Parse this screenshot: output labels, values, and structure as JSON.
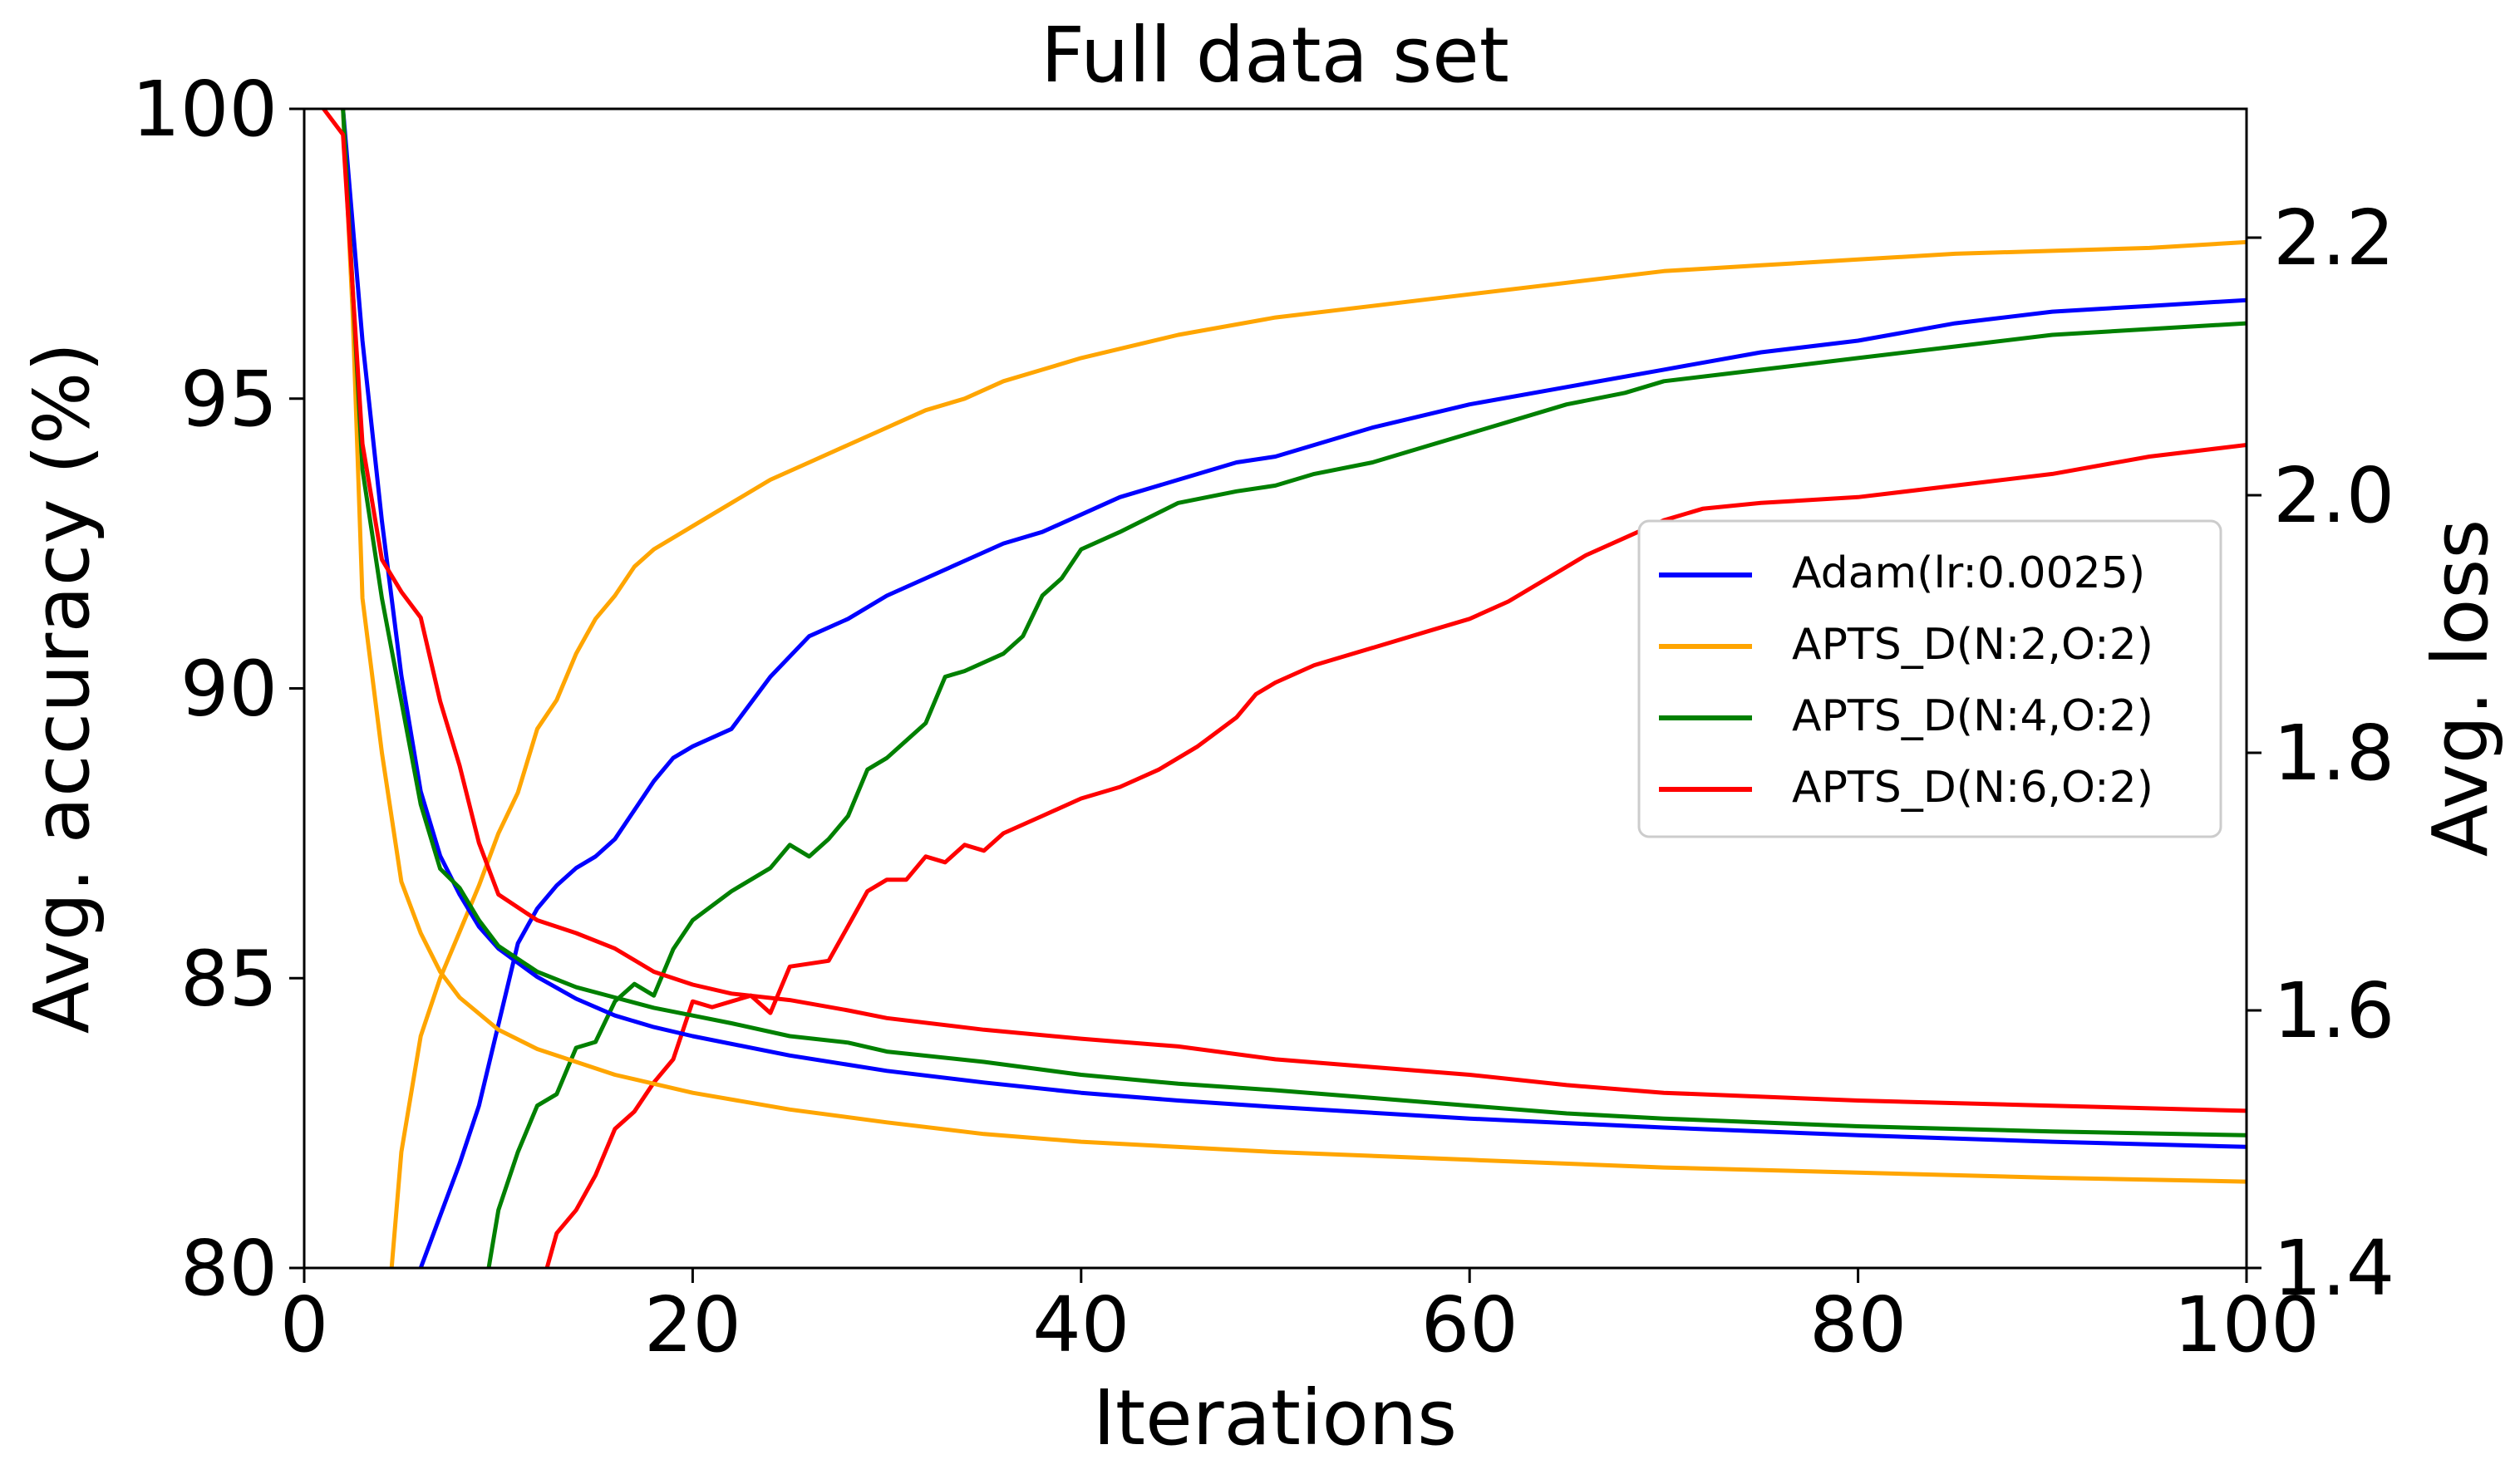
{
  "chart_data": {
    "type": "line",
    "title": "Full data set",
    "xlabel": "Iterations",
    "ylabel": "Avg. accuracy (%)",
    "y2label": "Avg. loss",
    "xlim": [
      0,
      100
    ],
    "ylim": [
      80,
      100
    ],
    "y2lim": [
      1.4,
      2.3
    ],
    "xticks": [
      0,
      20,
      40,
      60,
      80,
      100
    ],
    "yticks": [
      80,
      85,
      90,
      95,
      100
    ],
    "y2ticks": [
      1.4,
      1.6,
      1.8,
      2.0,
      2.2
    ],
    "legend_position": "center-right",
    "grid": false,
    "accuracy_series": [
      {
        "name": "Adam(lr:0.0025)",
        "color": "#0000ff",
        "points": [
          [
            6,
            80
          ],
          [
            7,
            80.9
          ],
          [
            8,
            81.8
          ],
          [
            9,
            82.8
          ],
          [
            10,
            84.2
          ],
          [
            11,
            85.6
          ],
          [
            12,
            86.2
          ],
          [
            13,
            86.6
          ],
          [
            14,
            86.9
          ],
          [
            15,
            87.1
          ],
          [
            16,
            87.4
          ],
          [
            17,
            87.9
          ],
          [
            18,
            88.4
          ],
          [
            19,
            88.8
          ],
          [
            20,
            89.0
          ],
          [
            22,
            89.3
          ],
          [
            24,
            90.2
          ],
          [
            26,
            90.9
          ],
          [
            28,
            91.2
          ],
          [
            30,
            91.6
          ],
          [
            32,
            91.9
          ],
          [
            34,
            92.2
          ],
          [
            36,
            92.5
          ],
          [
            38,
            92.7
          ],
          [
            40,
            93.0
          ],
          [
            42,
            93.3
          ],
          [
            45,
            93.6
          ],
          [
            48,
            93.9
          ],
          [
            50,
            94.0
          ],
          [
            55,
            94.5
          ],
          [
            60,
            94.9
          ],
          [
            65,
            95.2
          ],
          [
            70,
            95.5
          ],
          [
            75,
            95.8
          ],
          [
            80,
            96.0
          ],
          [
            85,
            96.3
          ],
          [
            90,
            96.5
          ],
          [
            95,
            96.6
          ],
          [
            100,
            96.7
          ]
        ]
      },
      {
        "name": "APTS_D(N:2,O:2)",
        "color": "#ffa500",
        "points": [
          [
            4.5,
            80
          ],
          [
            5,
            82.0
          ],
          [
            6,
            84.0
          ],
          [
            7,
            85.0
          ],
          [
            8,
            85.8
          ],
          [
            9,
            86.6
          ],
          [
            10,
            87.5
          ],
          [
            11,
            88.2
          ],
          [
            12,
            89.3
          ],
          [
            13,
            89.8
          ],
          [
            14,
            90.6
          ],
          [
            15,
            91.2
          ],
          [
            16,
            91.6
          ],
          [
            17,
            92.1
          ],
          [
            18,
            92.4
          ],
          [
            20,
            92.8
          ],
          [
            22,
            93.2
          ],
          [
            24,
            93.6
          ],
          [
            26,
            93.9
          ],
          [
            28,
            94.2
          ],
          [
            30,
            94.5
          ],
          [
            32,
            94.8
          ],
          [
            34,
            95.0
          ],
          [
            36,
            95.3
          ],
          [
            38,
            95.5
          ],
          [
            40,
            95.7
          ],
          [
            45,
            96.1
          ],
          [
            50,
            96.4
          ],
          [
            55,
            96.6
          ],
          [
            60,
            96.8
          ],
          [
            65,
            97.0
          ],
          [
            70,
            97.2
          ],
          [
            75,
            97.3
          ],
          [
            80,
            97.4
          ],
          [
            85,
            97.5
          ],
          [
            90,
            97.55
          ],
          [
            95,
            97.6
          ],
          [
            100,
            97.7
          ]
        ]
      },
      {
        "name": "APTS_D(N:4,O:2)",
        "color": "#008000",
        "points": [
          [
            9.5,
            80
          ],
          [
            10,
            81.0
          ],
          [
            11,
            82.0
          ],
          [
            12,
            82.8
          ],
          [
            13,
            83.0
          ],
          [
            14,
            83.8
          ],
          [
            15,
            83.9
          ],
          [
            16,
            84.6
          ],
          [
            17,
            84.9
          ],
          [
            18,
            84.7
          ],
          [
            19,
            85.5
          ],
          [
            20,
            86.0
          ],
          [
            22,
            86.5
          ],
          [
            24,
            86.9
          ],
          [
            25,
            87.3
          ],
          [
            26,
            87.1
          ],
          [
            27,
            87.4
          ],
          [
            28,
            87.8
          ],
          [
            29,
            88.6
          ],
          [
            30,
            88.8
          ],
          [
            32,
            89.4
          ],
          [
            33,
            90.2
          ],
          [
            34,
            90.3
          ],
          [
            36,
            90.6
          ],
          [
            37,
            90.9
          ],
          [
            38,
            91.6
          ],
          [
            39,
            91.9
          ],
          [
            40,
            92.4
          ],
          [
            42,
            92.7
          ],
          [
            45,
            93.2
          ],
          [
            48,
            93.4
          ],
          [
            50,
            93.5
          ],
          [
            52,
            93.7
          ],
          [
            55,
            93.9
          ],
          [
            58,
            94.2
          ],
          [
            60,
            94.4
          ],
          [
            62,
            94.6
          ],
          [
            65,
            94.9
          ],
          [
            68,
            95.1
          ],
          [
            70,
            95.3
          ],
          [
            75,
            95.5
          ],
          [
            80,
            95.7
          ],
          [
            85,
            95.9
          ],
          [
            90,
            96.1
          ],
          [
            95,
            96.2
          ],
          [
            100,
            96.3
          ]
        ]
      },
      {
        "name": "APTS_D(N:6,O:2)",
        "color": "#ff0000",
        "points": [
          [
            12.5,
            80
          ],
          [
            13,
            80.6
          ],
          [
            14,
            81.0
          ],
          [
            15,
            81.6
          ],
          [
            16,
            82.4
          ],
          [
            17,
            82.7
          ],
          [
            18,
            83.2
          ],
          [
            19,
            83.6
          ],
          [
            20,
            84.6
          ],
          [
            21,
            84.5
          ],
          [
            23,
            84.7
          ],
          [
            24,
            84.4
          ],
          [
            25,
            85.2
          ],
          [
            27,
            85.3
          ],
          [
            28,
            85.9
          ],
          [
            29,
            86.5
          ],
          [
            30,
            86.7
          ],
          [
            31,
            86.7
          ],
          [
            32,
            87.1
          ],
          [
            33,
            87.0
          ],
          [
            34,
            87.3
          ],
          [
            35,
            87.2
          ],
          [
            36,
            87.5
          ],
          [
            38,
            87.8
          ],
          [
            40,
            88.1
          ],
          [
            42,
            88.3
          ],
          [
            44,
            88.6
          ],
          [
            46,
            89.0
          ],
          [
            48,
            89.5
          ],
          [
            49,
            89.9
          ],
          [
            50,
            90.1
          ],
          [
            52,
            90.4
          ],
          [
            55,
            90.7
          ],
          [
            58,
            91.0
          ],
          [
            60,
            91.2
          ],
          [
            62,
            91.5
          ],
          [
            64,
            91.9
          ],
          [
            66,
            92.3
          ],
          [
            68,
            92.6
          ],
          [
            70,
            92.9
          ],
          [
            72,
            93.1
          ],
          [
            75,
            93.2
          ],
          [
            80,
            93.3
          ],
          [
            85,
            93.5
          ],
          [
            90,
            93.7
          ],
          [
            95,
            94.0
          ],
          [
            100,
            94.2
          ]
        ]
      }
    ],
    "loss_series": [
      {
        "name": "Adam(lr:0.0025) loss",
        "color": "#0000ff",
        "points": [
          [
            2,
            2.3
          ],
          [
            3,
            2.12
          ],
          [
            4,
            1.98
          ],
          [
            5,
            1.86
          ],
          [
            6,
            1.77
          ],
          [
            7,
            1.72
          ],
          [
            8,
            1.69
          ],
          [
            9,
            1.665
          ],
          [
            10,
            1.648
          ],
          [
            12,
            1.626
          ],
          [
            14,
            1.609
          ],
          [
            16,
            1.596
          ],
          [
            18,
            1.587
          ],
          [
            20,
            1.58
          ],
          [
            25,
            1.565
          ],
          [
            30,
            1.553
          ],
          [
            35,
            1.544
          ],
          [
            40,
            1.536
          ],
          [
            45,
            1.53
          ],
          [
            50,
            1.525
          ],
          [
            60,
            1.516
          ],
          [
            70,
            1.509
          ],
          [
            80,
            1.503
          ],
          [
            90,
            1.498
          ],
          [
            100,
            1.494
          ]
        ]
      },
      {
        "name": "APTS_D(N:2,O:2) loss",
        "color": "#ffa500",
        "points": [
          [
            2,
            2.3
          ],
          [
            2.5,
            2.14
          ],
          [
            3,
            1.92
          ],
          [
            4,
            1.8
          ],
          [
            5,
            1.7
          ],
          [
            6,
            1.66
          ],
          [
            7,
            1.63
          ],
          [
            8,
            1.61
          ],
          [
            10,
            1.585
          ],
          [
            12,
            1.57
          ],
          [
            14,
            1.56
          ],
          [
            16,
            1.55
          ],
          [
            18,
            1.543
          ],
          [
            20,
            1.536
          ],
          [
            25,
            1.523
          ],
          [
            30,
            1.513
          ],
          [
            35,
            1.504
          ],
          [
            40,
            1.498
          ],
          [
            50,
            1.49
          ],
          [
            60,
            1.484
          ],
          [
            70,
            1.478
          ],
          [
            80,
            1.474
          ],
          [
            90,
            1.47
          ],
          [
            100,
            1.467
          ]
        ]
      },
      {
        "name": "APTS_D(N:4,O:2) loss",
        "color": "#008000",
        "points": [
          [
            2,
            2.3
          ],
          [
            3,
            2.02
          ],
          [
            4,
            1.92
          ],
          [
            5,
            1.84
          ],
          [
            6,
            1.76
          ],
          [
            7,
            1.71
          ],
          [
            8,
            1.695
          ],
          [
            9,
            1.67
          ],
          [
            10,
            1.65
          ],
          [
            12,
            1.63
          ],
          [
            14,
            1.618
          ],
          [
            16,
            1.61
          ],
          [
            18,
            1.602
          ],
          [
            20,
            1.596
          ],
          [
            22,
            1.59
          ],
          [
            25,
            1.58
          ],
          [
            28,
            1.575
          ],
          [
            30,
            1.568
          ],
          [
            35,
            1.56
          ],
          [
            40,
            1.55
          ],
          [
            45,
            1.543
          ],
          [
            50,
            1.538
          ],
          [
            55,
            1.532
          ],
          [
            60,
            1.526
          ],
          [
            65,
            1.52
          ],
          [
            70,
            1.516
          ],
          [
            80,
            1.51
          ],
          [
            90,
            1.506
          ],
          [
            100,
            1.503
          ]
        ]
      },
      {
        "name": "APTS_D(N:6,O:2) loss",
        "color": "#ff0000",
        "points": [
          [
            1,
            2.3
          ],
          [
            2,
            2.28
          ],
          [
            3,
            2.04
          ],
          [
            4,
            1.95
          ],
          [
            5,
            1.925
          ],
          [
            6,
            1.905
          ],
          [
            7,
            1.84
          ],
          [
            8,
            1.79
          ],
          [
            9,
            1.73
          ],
          [
            10,
            1.69
          ],
          [
            12,
            1.67
          ],
          [
            14,
            1.66
          ],
          [
            16,
            1.648
          ],
          [
            18,
            1.63
          ],
          [
            20,
            1.62
          ],
          [
            22,
            1.613
          ],
          [
            25,
            1.608
          ],
          [
            28,
            1.6
          ],
          [
            30,
            1.594
          ],
          [
            35,
            1.585
          ],
          [
            40,
            1.578
          ],
          [
            45,
            1.572
          ],
          [
            50,
            1.562
          ],
          [
            55,
            1.556
          ],
          [
            60,
            1.55
          ],
          [
            65,
            1.542
          ],
          [
            70,
            1.536
          ],
          [
            80,
            1.53
          ],
          [
            90,
            1.526
          ],
          [
            100,
            1.522
          ]
        ]
      }
    ]
  }
}
